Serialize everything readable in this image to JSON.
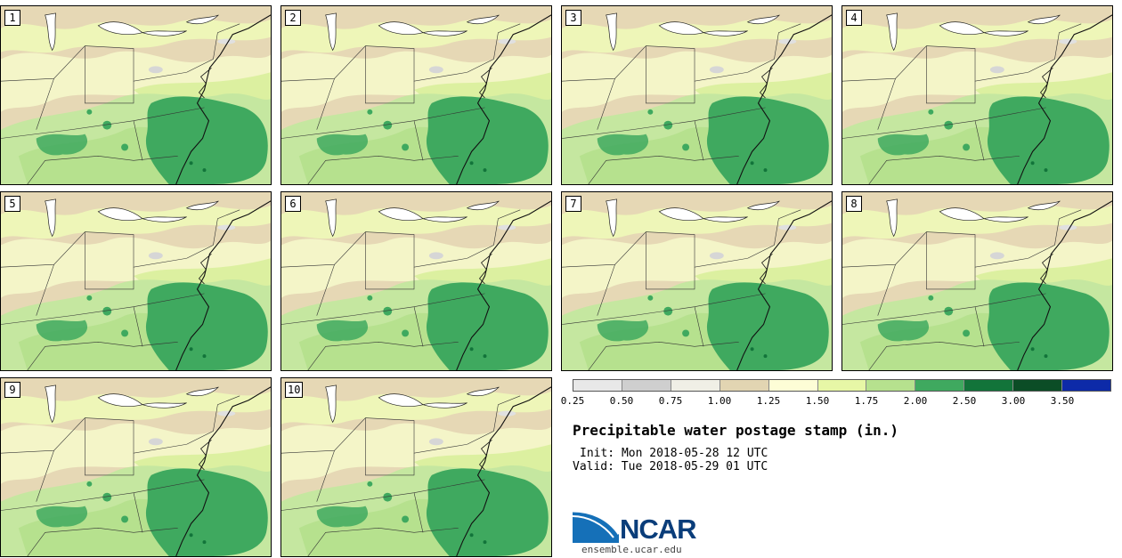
{
  "stamps": [
    {
      "label": "1"
    },
    {
      "label": "2"
    },
    {
      "label": "3"
    },
    {
      "label": "4"
    },
    {
      "label": "5"
    },
    {
      "label": "6"
    },
    {
      "label": "7"
    },
    {
      "label": "8"
    },
    {
      "label": "9"
    },
    {
      "label": "10"
    }
  ],
  "colorbar": {
    "colors": [
      "#e8e8e8",
      "#cfcfcf",
      "#f0efe6",
      "#e2d5b2",
      "#fdfdd6",
      "#e7f7a6",
      "#b6e18e",
      "#3fa95f",
      "#12743a",
      "#0b4d26",
      "#0d2aa8"
    ],
    "ticks": [
      "0.25",
      "0.50",
      "0.75",
      "1.00",
      "1.25",
      "1.50",
      "1.75",
      "2.00",
      "2.50",
      "3.00",
      "3.50"
    ]
  },
  "title": "Precipitable water postage stamp (in.)",
  "init": "Init: Mon 2018-05-28 12 UTC",
  "valid": "Valid: Tue 2018-05-29 01 UTC",
  "logo": {
    "text": "NCAR",
    "url": "ensemble.ucar.edu"
  }
}
